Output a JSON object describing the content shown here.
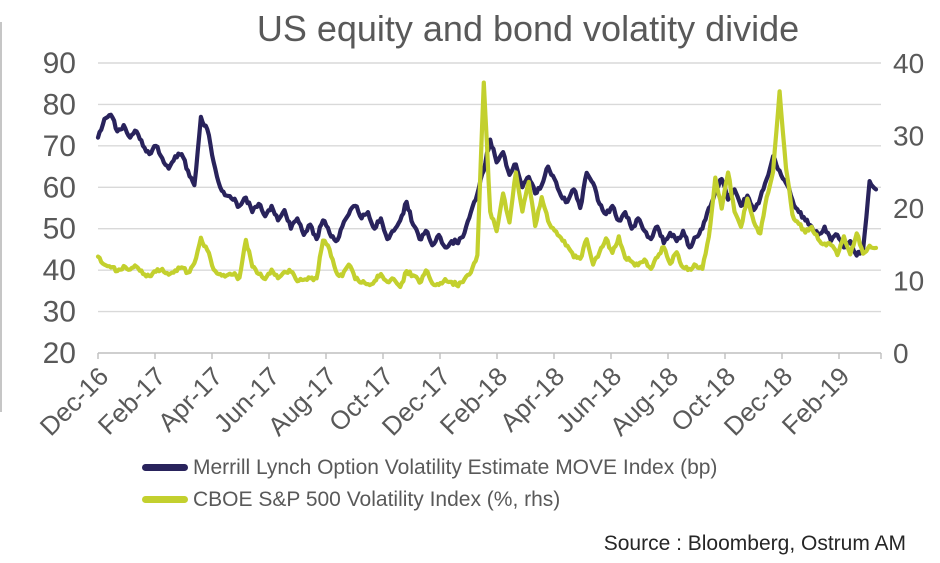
{
  "chart_data": {
    "type": "line",
    "title": "US equity and bond volatity divide",
    "x_tick_labels": [
      "Dec-16",
      "Feb-17",
      "Apr-17",
      "Jun-17",
      "Aug-17",
      "Oct-17",
      "Dec-17",
      "Feb-18",
      "Apr-18",
      "Jun-18",
      "Aug-18",
      "Oct-18",
      "Dec-18",
      "Feb-19"
    ],
    "left_axis": {
      "ticks": [
        90,
        80,
        70,
        60,
        50,
        40,
        30,
        20
      ],
      "range": [
        20,
        90
      ]
    },
    "right_axis": {
      "ticks": [
        40,
        30,
        20,
        10,
        0
      ],
      "range": [
        0,
        40
      ]
    },
    "grid": true,
    "legend_position": "bottom-left",
    "series": [
      {
        "name": "Merrill Lynch Option Volatility Estimate MOVE Index (bp)",
        "axis": "left",
        "unit": "bp",
        "color": "#29235c",
        "values": [
          72,
          76.5,
          77.5,
          73.5,
          75,
          72,
          73.5,
          70,
          68,
          70,
          67,
          64.5,
          67.5,
          68,
          64,
          60.5,
          77,
          74,
          66,
          60,
          58,
          57,
          55.5,
          57.5,
          54,
          56,
          53,
          55.5,
          52,
          54.5,
          50,
          52.5,
          48.5,
          51,
          47.5,
          52,
          49,
          47,
          50.5,
          53.5,
          55.5,
          52.5,
          54,
          50,
          52.5,
          47.5,
          49.5,
          52,
          56.5,
          51,
          47.5,
          49.5,
          46,
          48.5,
          45.5,
          47,
          46.5,
          49,
          54,
          58.5,
          64,
          71.5,
          66,
          68.5,
          63,
          65.5,
          60,
          62.5,
          58.5,
          60.5,
          65,
          62,
          58,
          56.5,
          59.5,
          55,
          63.5,
          61,
          56,
          53.5,
          55.5,
          52,
          54,
          50,
          52.5,
          49.5,
          47.5,
          50.5,
          46.5,
          49,
          47,
          49.5,
          45.5,
          48,
          50,
          55,
          59,
          62,
          57,
          59.5,
          55.5,
          58,
          54.5,
          57.5,
          62,
          67.5,
          64,
          61,
          57,
          54,
          52,
          50.5,
          48.5,
          50.5,
          47,
          48.5,
          45.5,
          47,
          43.5,
          45,
          61.5,
          59.5
        ]
      },
      {
        "name": "CBOE S&P 500 Volatility Index (%, rhs)",
        "axis": "right",
        "unit": "%",
        "color": "#c3d02e",
        "values": [
          13.3,
          12.2,
          11.8,
          11.3,
          12,
          11.5,
          11.9,
          10.9,
          10.6,
          11.2,
          11.6,
          10.8,
          11.4,
          11.8,
          11.1,
          12.4,
          15.9,
          14.2,
          11.5,
          10.9,
          10.7,
          10.8,
          10.4,
          15.6,
          11.9,
          10.9,
          10.2,
          11.5,
          10.3,
          11.2,
          11.2,
          9.9,
          10.1,
          10.3,
          10.3,
          15.5,
          14.3,
          11.3,
          10.6,
          12.2,
          10.2,
          9.7,
          9.5,
          9.9,
          10.9,
          9.8,
          10.2,
          9.1,
          11.3,
          10.7,
          9.7,
          11.4,
          9.6,
          9.4,
          10.2,
          9.8,
          9.2,
          10.2,
          11.1,
          13.5,
          37.3,
          19.5,
          16.8,
          22,
          18,
          24.9,
          19.5,
          23.6,
          17.5,
          21.5,
          18.2,
          16.9,
          15.9,
          14.8,
          13.2,
          13,
          15.7,
          12.2,
          13.9,
          15.8,
          13.8,
          16.1,
          13.1,
          12.6,
          12.1,
          12.9,
          11.6,
          13.2,
          14.6,
          12.3,
          13.9,
          11.8,
          11.6,
          12.1,
          11.6,
          16,
          24.2,
          19.9,
          24.9,
          19.5,
          17.4,
          21.3,
          18.1,
          16.5,
          21.5,
          25,
          36.1,
          25.5,
          19.1,
          17.8,
          16.6,
          17.4,
          15.7,
          15.1,
          14.9,
          13.5,
          16.1,
          13.6,
          16.5,
          13.7,
          14.8,
          14.5
        ]
      }
    ]
  },
  "legend": {
    "items": [
      {
        "label": "Merrill Lynch Option Volatility Estimate MOVE Index (bp)",
        "color": "#29235c"
      },
      {
        "label": "CBOE S&P 500 Volatility Index (%, rhs)",
        "color": "#c3d02e"
      }
    ]
  },
  "source": "Source : Bloomberg, Ostrum AM",
  "colors": {
    "move_line": "#29235c",
    "vix_line": "#c3d02e",
    "text": "#595959",
    "gridline": "#d9d9d9",
    "axis": "#bfbfbf",
    "source_text": "#262626"
  }
}
